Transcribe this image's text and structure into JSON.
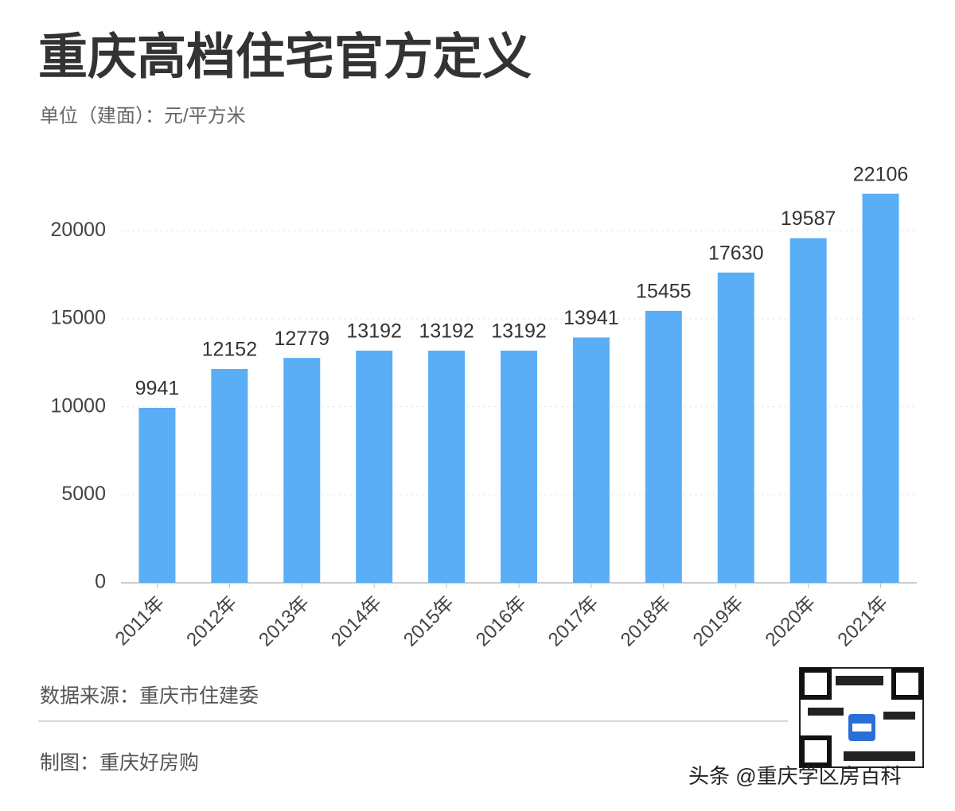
{
  "chart_data": {
    "type": "bar",
    "title": "重庆高档住宅官方定义",
    "subtitle": "单位（建面）：元/平方米",
    "categories": [
      "2011年",
      "2012年",
      "2013年",
      "2014年",
      "2015年",
      "2016年",
      "2017年",
      "2018年",
      "2019年",
      "2020年",
      "2021年"
    ],
    "values": [
      9941,
      12152,
      12779,
      13192,
      13192,
      13192,
      13941,
      15455,
      17630,
      19587,
      22106
    ],
    "color": "#5aaef5",
    "ylim": [
      0,
      22500
    ],
    "yticks": [
      0,
      5000,
      10000,
      15000,
      20000
    ],
    "grid": true,
    "source": "数据来源：重庆市住建委",
    "credit": "制图：重庆好房购",
    "watermark": "头条 @重庆学区房百科"
  }
}
